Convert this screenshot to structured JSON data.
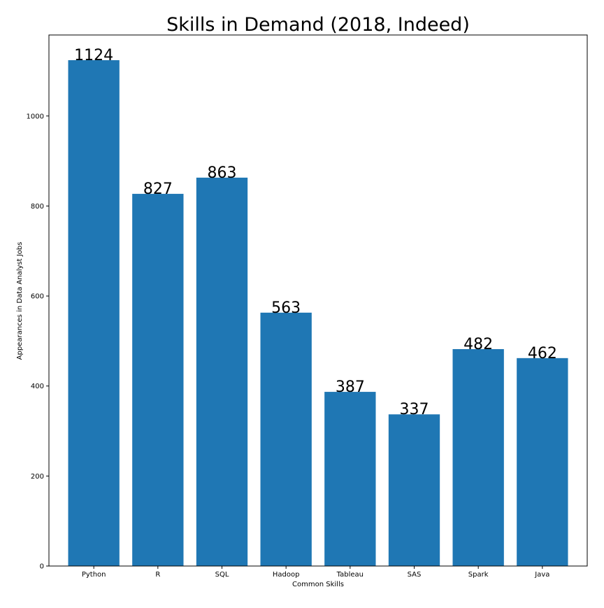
{
  "chart_data": {
    "type": "bar",
    "title": "Skills in Demand (2018, Indeed)",
    "xlabel": "Common Skills",
    "ylabel": "Appearances in Data Analyst Jobs",
    "categories": [
      "Python",
      "R",
      "SQL",
      "Hadoop",
      "Tableau",
      "SAS",
      "Spark",
      "Java"
    ],
    "values": [
      1124,
      827,
      863,
      563,
      387,
      337,
      482,
      462
    ],
    "value_labels": [
      "1124",
      "827",
      "863",
      "563",
      "387",
      "337",
      "482",
      "462"
    ],
    "ylim": [
      0,
      1180
    ],
    "yticks": [
      0,
      200,
      400,
      600,
      800,
      1000
    ],
    "grid": false,
    "bar_color": "#1f77b4",
    "axis_color": "#000000"
  }
}
